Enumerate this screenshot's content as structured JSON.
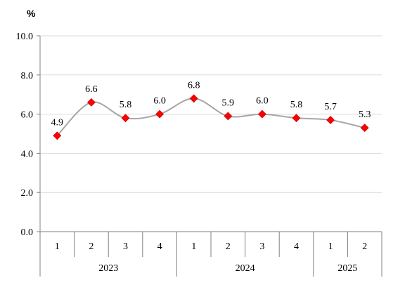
{
  "chart_data": {
    "type": "line",
    "unit": "%",
    "ylim": [
      0,
      10
    ],
    "y_ticks": [
      "0.0",
      "2.0",
      "4.0",
      "6.0",
      "8.0",
      "10.0"
    ],
    "grid": true,
    "smooth": true,
    "categories": [
      "1",
      "2",
      "3",
      "4",
      "1",
      "2",
      "3",
      "4",
      "1",
      "2"
    ],
    "groups": [
      {
        "label": "2023",
        "count": 4
      },
      {
        "label": "2024",
        "count": 4
      },
      {
        "label": "2025",
        "count": 2
      }
    ],
    "series": [
      {
        "values": [
          4.9,
          6.6,
          5.8,
          6.0,
          6.8,
          5.9,
          6.0,
          5.8,
          5.7,
          5.3
        ],
        "labels": [
          "4.9",
          "6.6",
          "5.8",
          "6.0",
          "6.8",
          "5.9",
          "6.0",
          "5.8",
          "5.7",
          "5.3"
        ],
        "line_color": "#a6a6a6",
        "marker_color": "#ff0000",
        "marker": "diamond"
      }
    ]
  }
}
